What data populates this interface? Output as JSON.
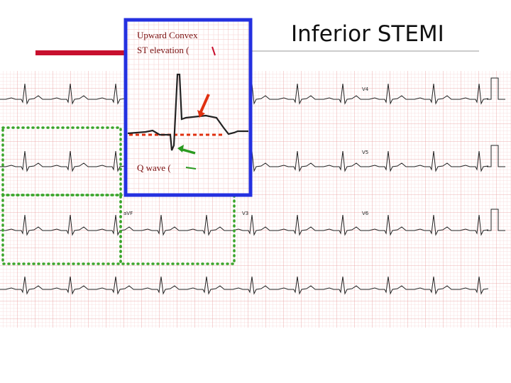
{
  "header": {
    "title": "Inferior STEMI"
  },
  "annotations": {
    "st": [
      "Upward Convex",
      "ST elevation ("
    ],
    "q": "Q wave ("
  },
  "leads": [
    "aVF",
    "V3",
    "V4",
    "V5",
    "V6"
  ]
}
